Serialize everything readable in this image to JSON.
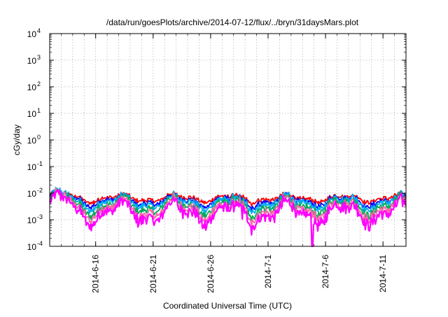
{
  "chart_data": {
    "type": "line",
    "title": "/data/run/goesPlots/archive/2014-07-12/flux/../bryn/31daysMars.plot",
    "xlabel": "Coordinated Universal Time (UTC)",
    "ylabel": "cGy/day",
    "y_scale": "log",
    "ylim_exponent": [
      -4,
      4
    ],
    "y_ticks": [
      {
        "exp": "-4"
      },
      {
        "exp": "-3"
      },
      {
        "exp": "-2"
      },
      {
        "exp": "-1"
      },
      {
        "exp": "0"
      },
      {
        "exp": "1"
      },
      {
        "exp": "2"
      },
      {
        "exp": "3"
      },
      {
        "exp": "4"
      }
    ],
    "y_tick_base": "10",
    "x_range_days": [
      "2014-06-12",
      "2014-07-13"
    ],
    "x_tick_labels": [
      "2014-6-16",
      "2014-6-21",
      "2014-6-26",
      "2014-7-1",
      "2014-7-6",
      "2014-7-11"
    ],
    "x_tick_dates": [
      "2014-06-16",
      "2014-06-21",
      "2014-06-26",
      "2014-07-01",
      "2014-07-06",
      "2014-07-11"
    ],
    "minor_grid_dates": [
      "2014-06-13",
      "2014-06-14",
      "2014-06-15",
      "2014-06-16",
      "2014-06-17",
      "2014-06-18",
      "2014-06-19",
      "2014-06-20",
      "2014-06-21",
      "2014-06-22",
      "2014-06-23",
      "2014-06-24",
      "2014-06-25",
      "2014-06-26",
      "2014-06-27",
      "2014-06-28",
      "2014-06-29",
      "2014-06-30",
      "2014-07-01",
      "2014-07-02",
      "2014-07-03",
      "2014-07-04",
      "2014-07-05",
      "2014-07-06",
      "2014-07-07",
      "2014-07-08",
      "2014-07-09",
      "2014-07-10",
      "2014-07-11",
      "2014-07-12"
    ],
    "grid": true,
    "legend": "none",
    "series": [
      {
        "color": "#ff0000",
        "level": 0.0065
      },
      {
        "color": "#0000ff",
        "level": 0.0052
      },
      {
        "color": "#00b0f0",
        "level": 0.0045
      },
      {
        "color": "#00aa55",
        "level": 0.0033
      },
      {
        "color": "#ff66aa",
        "level": 0.0025
      },
      {
        "color": "#ff00ff",
        "level": 0.0018
      }
    ]
  }
}
